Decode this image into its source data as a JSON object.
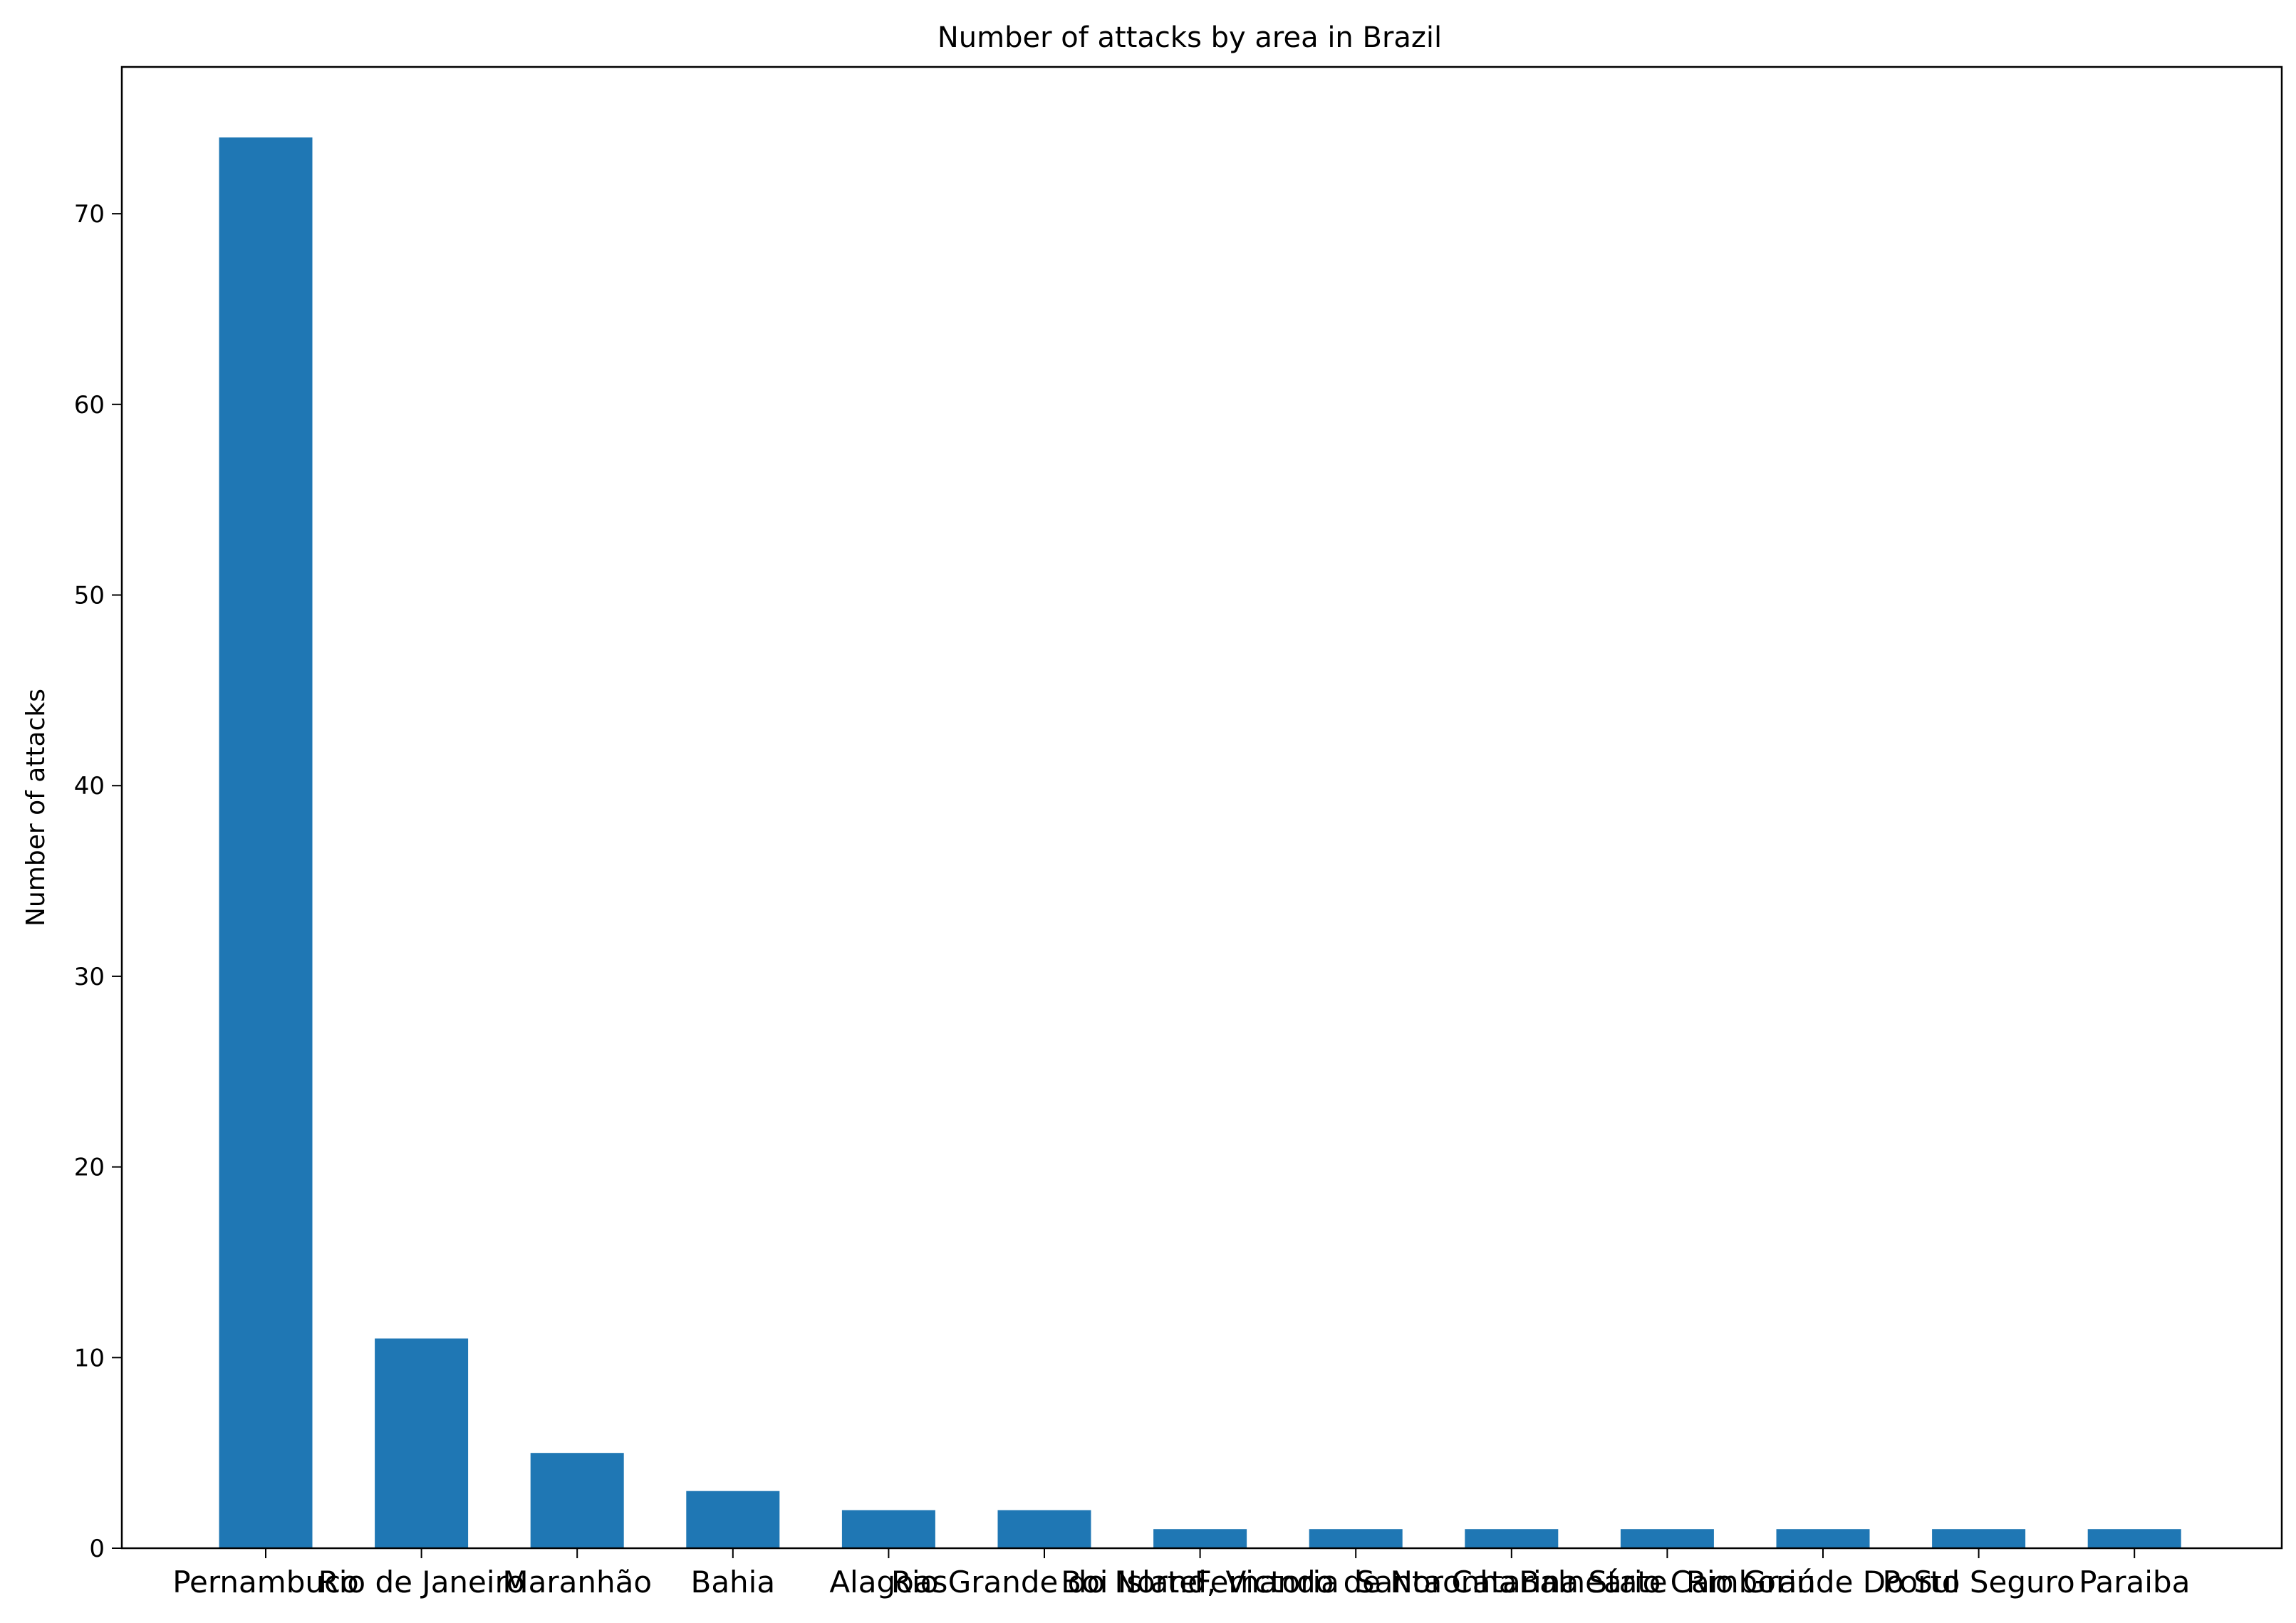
{
  "chart_data": {
    "type": "bar",
    "title": "Number of attacks by area in Brazil",
    "xlabel": "",
    "ylabel": "Number of attacks",
    "categories": [
      "Pernambuco",
      "Rio de Janeiro",
      "Maranhão",
      "Bahia",
      "Alagoas",
      "Rio Grande do Norte",
      "Boi Island, Victoria",
      "Fernando de Noronha",
      "Santa Catarina State",
      "Balneário Camboriú",
      "Rio Grande Do Sul",
      "Porto Seguro",
      "Paraiba"
    ],
    "values": [
      74,
      11,
      5,
      3,
      2,
      2,
      1,
      1,
      1,
      1,
      1,
      1,
      1
    ],
    "ylim": [
      0,
      77.7
    ],
    "yticks": [
      0,
      10,
      20,
      30,
      40,
      50,
      60,
      70
    ],
    "grid": false,
    "bar_color": "#1f77b4"
  }
}
